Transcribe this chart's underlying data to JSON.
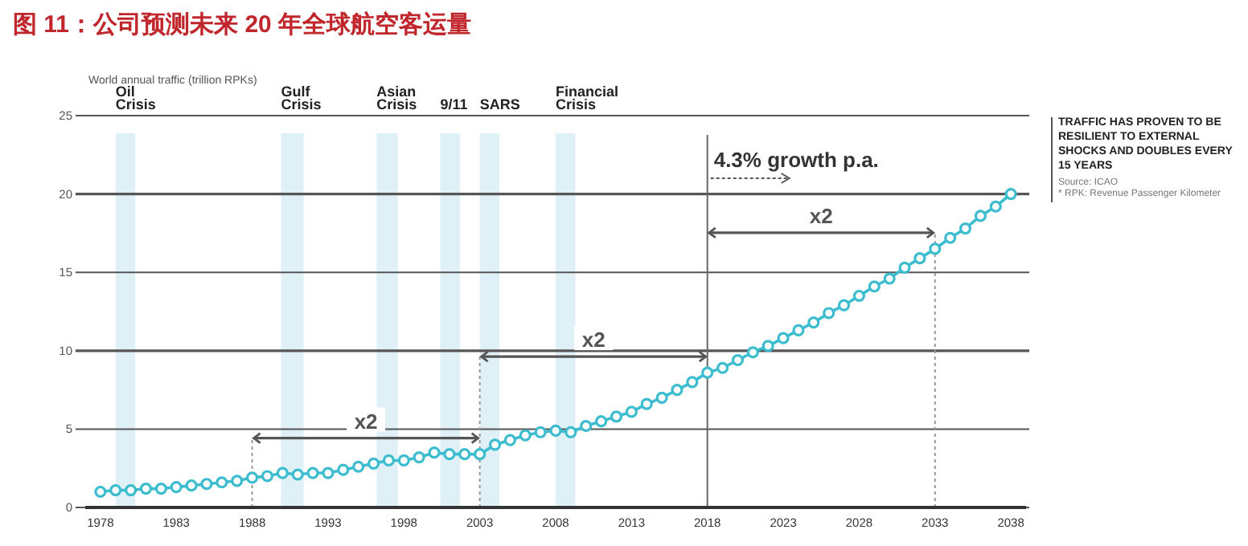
{
  "chart_data": {
    "type": "line",
    "title": "图 11：公司预测未来 20 年全球航空客运量",
    "ylabel": "World annual traffic (trillion RPKs)",
    "x": [
      1978,
      1979,
      1980,
      1981,
      1982,
      1983,
      1984,
      1985,
      1986,
      1987,
      1988,
      1989,
      1990,
      1991,
      1992,
      1993,
      1994,
      1995,
      1996,
      1997,
      1998,
      1999,
      2000,
      2001,
      2002,
      2003,
      2004,
      2005,
      2006,
      2007,
      2008,
      2009,
      2010,
      2011,
      2012,
      2013,
      2014,
      2015,
      2016,
      2017,
      2018,
      2019,
      2020,
      2021,
      2022,
      2023,
      2024,
      2025,
      2026,
      2027,
      2028,
      2029,
      2030,
      2031,
      2032,
      2033,
      2034,
      2035,
      2036,
      2037,
      2038
    ],
    "series": [
      {
        "color": "#3cbccf",
        "values": [
          1.0,
          1.1,
          1.1,
          1.2,
          1.2,
          1.3,
          1.4,
          1.5,
          1.6,
          1.7,
          1.9,
          2.0,
          2.2,
          2.1,
          2.2,
          2.2,
          2.4,
          2.6,
          2.8,
          3.0,
          3.0,
          3.2,
          3.5,
          3.4,
          3.4,
          3.4,
          4.0,
          4.3,
          4.6,
          4.8,
          4.9,
          4.8,
          5.2,
          5.5,
          5.8,
          6.1,
          6.6,
          7.0,
          7.5,
          8.0,
          8.6,
          8.9,
          9.4,
          9.9,
          10.3,
          10.8,
          11.3,
          11.8,
          12.4,
          12.9,
          13.5,
          14.1,
          14.6,
          15.3,
          15.9,
          16.5,
          17.2,
          17.8,
          18.6,
          19.2,
          20.0
        ]
      }
    ],
    "marker": "circle",
    "line_style": "solid",
    "grid": "y",
    "xlim": [
      1977,
      2039
    ],
    "xticks": [
      1978,
      1983,
      1988,
      1993,
      1998,
      2003,
      2008,
      2013,
      2018,
      2023,
      2028,
      2033,
      2038
    ],
    "ylim": [
      0,
      25
    ],
    "yticks": [
      0,
      5,
      10,
      15,
      20,
      25
    ],
    "bands": [
      {
        "axis": "x",
        "from": 1979,
        "to": 1980.3,
        "label": "Oil\nCrisis",
        "color": "#dff0f6"
      },
      {
        "axis": "x",
        "from": 1989.9,
        "to": 1991.4,
        "label": "Gulf\nCrisis",
        "color": "#dff0f6"
      },
      {
        "axis": "x",
        "from": 1996.2,
        "to": 1997.6,
        "label": "Asian\nCrisis",
        "color": "#dff0f6"
      },
      {
        "axis": "x",
        "from": 2000.4,
        "to": 2001.7,
        "label": "9/11",
        "color": "#dff0f6"
      },
      {
        "axis": "x",
        "from": 2003,
        "to": 2004.3,
        "label": "SARS",
        "color": "#dff0f6"
      },
      {
        "axis": "x",
        "from": 2008,
        "to": 2009.3,
        "label": "Financial\nCrisis",
        "color": "#dff0f6"
      }
    ],
    "ref_lines": [
      {
        "axis": "x",
        "value": 1988,
        "line_style": "dotted",
        "color": "#999999"
      },
      {
        "axis": "x",
        "value": 2003,
        "line_style": "dotted",
        "color": "#999999"
      },
      {
        "axis": "x",
        "value": 2018,
        "line_style": "solid",
        "color": "#666666",
        "label": "4.3% growth p.a."
      },
      {
        "axis": "x",
        "value": 2033,
        "line_style": "dotted",
        "color": "#999999"
      }
    ],
    "annotations": [
      "x2",
      "x2",
      "x2",
      "TRAFFIC HAS PROVEN TO BE RESILIENT TO EXTERNAL SHOCKS AND DOUBLES EVERY 15 YEARS",
      "Source: ICAO",
      "* RPK: Revenue Passenger Kilometer"
    ]
  }
}
